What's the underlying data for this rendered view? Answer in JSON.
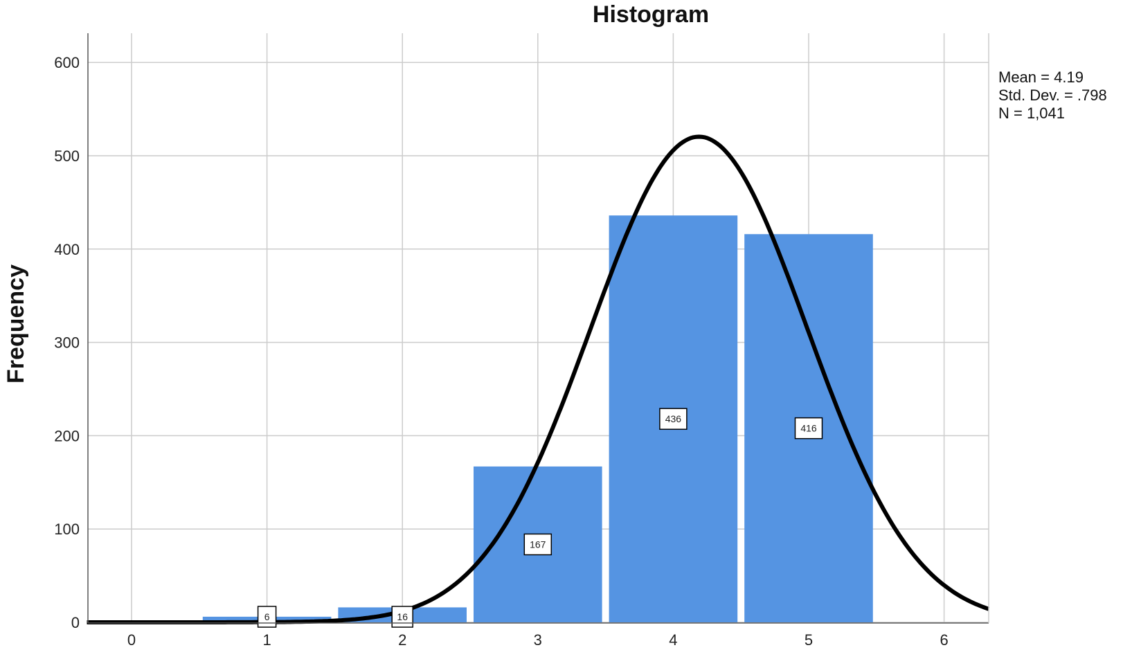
{
  "chart_data": {
    "type": "bar",
    "title": "Histogram",
    "xlabel": "",
    "ylabel": "Frequency",
    "categories": [
      "1",
      "2",
      "3",
      "4",
      "5"
    ],
    "x": [
      1,
      2,
      3,
      4,
      5
    ],
    "values": [
      6,
      16,
      167,
      436,
      416
    ],
    "data_labels": [
      "6",
      "16",
      "167",
      "436",
      "416"
    ],
    "xlim": [
      -0.33,
      6.33
    ],
    "ylim": [
      0,
      600
    ],
    "x_ticks": [
      0,
      1,
      2,
      3,
      4,
      5,
      6
    ],
    "x_tick_labels": [
      "0",
      "1",
      "2",
      "3",
      "4",
      "5",
      "6"
    ],
    "y_ticks": [
      0,
      100,
      200,
      300,
      400,
      500,
      600
    ],
    "y_tick_labels": [
      "0",
      "100",
      "200",
      "300",
      "400",
      "500",
      "600"
    ],
    "grid": true,
    "bar_color": "#5594E2",
    "curve_color": "#000000",
    "normal_curve": {
      "mean": 4.19,
      "std": 0.798,
      "n": 1041,
      "bin_width": 1
    },
    "legend_position": "top-right",
    "stats": [
      "Mean = 4.19",
      "Std. Dev. = .798",
      "N = 1,041"
    ]
  }
}
